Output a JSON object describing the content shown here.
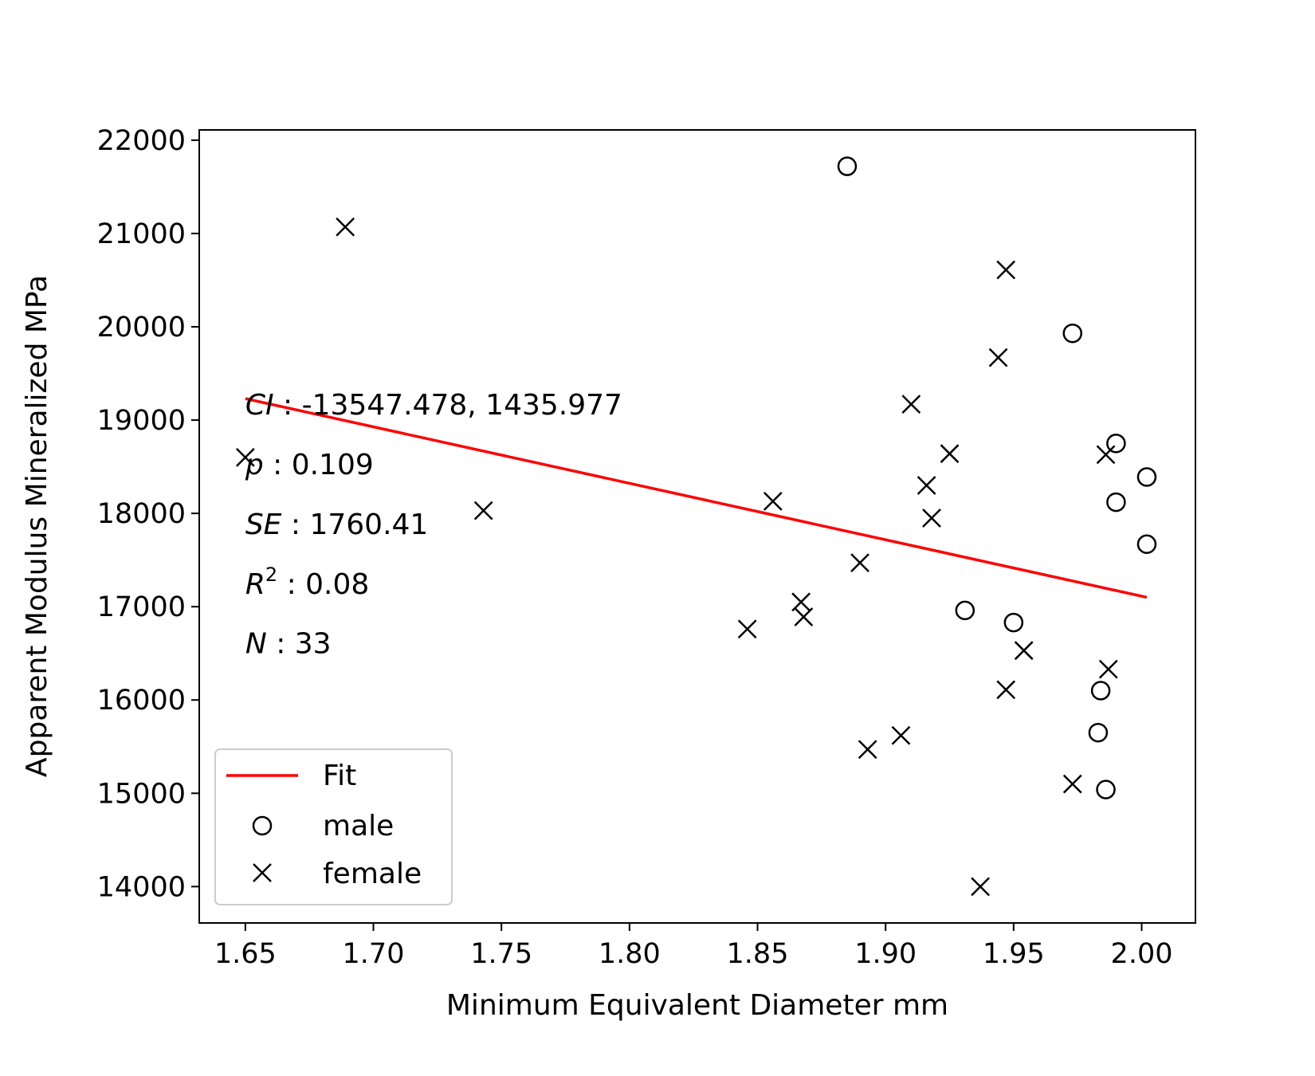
{
  "chart_data": {
    "type": "scatter",
    "title": "",
    "xlabel": "Minimum Equivalent Diameter mm",
    "ylabel": "Apparent Modulus Mineralized MPa",
    "xlim": [
      1.632,
      2.021
    ],
    "ylim": [
      13610,
      22110
    ],
    "xticks": [
      1.65,
      1.7,
      1.75,
      1.8,
      1.85,
      1.9,
      1.95,
      2.0
    ],
    "xtick_labels": [
      "1.65",
      "1.70",
      "1.75",
      "1.80",
      "1.85",
      "1.90",
      "1.95",
      "2.00"
    ],
    "yticks": [
      14000,
      15000,
      16000,
      17000,
      18000,
      19000,
      20000,
      21000,
      22000
    ],
    "ytick_labels": [
      "14000",
      "15000",
      "16000",
      "17000",
      "18000",
      "19000",
      "20000",
      "21000",
      "22000"
    ],
    "grid": false,
    "legend_position": "lower-left",
    "series": [
      {
        "name": "male",
        "marker": "circle",
        "color": "#000000",
        "points": [
          [
            1.885,
            21720
          ],
          [
            1.973,
            19930
          ],
          [
            1.99,
            18750
          ],
          [
            2.002,
            18390
          ],
          [
            1.99,
            18120
          ],
          [
            2.002,
            17670
          ],
          [
            1.931,
            16960
          ],
          [
            1.95,
            16830
          ],
          [
            1.984,
            16100
          ],
          [
            1.983,
            15650
          ],
          [
            1.986,
            15040
          ]
        ]
      },
      {
        "name": "female",
        "marker": "x",
        "color": "#000000",
        "points": [
          [
            1.65,
            18600
          ],
          [
            1.689,
            21070
          ],
          [
            1.743,
            18030
          ],
          [
            1.846,
            16760
          ],
          [
            1.856,
            18130
          ],
          [
            1.867,
            17050
          ],
          [
            1.868,
            16890
          ],
          [
            1.89,
            17470
          ],
          [
            1.893,
            15470
          ],
          [
            1.906,
            15620
          ],
          [
            1.91,
            19170
          ],
          [
            1.916,
            18300
          ],
          [
            1.918,
            17950
          ],
          [
            1.925,
            18640
          ],
          [
            1.937,
            14000
          ],
          [
            1.944,
            19670
          ],
          [
            1.947,
            20610
          ],
          [
            1.947,
            16110
          ],
          [
            1.954,
            16530
          ],
          [
            1.973,
            15100
          ],
          [
            1.986,
            18630
          ],
          [
            1.987,
            16330
          ]
        ]
      },
      {
        "name": "Fit",
        "type": "line",
        "color": "#ff0000",
        "points": [
          [
            1.65,
            19230
          ],
          [
            2.002,
            17100
          ]
        ]
      }
    ],
    "annotations": [
      {
        "symbol": "N",
        "superscript": "",
        "value": " : 33"
      },
      {
        "symbol": "R",
        "superscript": "2",
        "value": " : 0.08"
      },
      {
        "symbol": "SE",
        "superscript": "",
        "value": " : 1760.41"
      },
      {
        "symbol": "p",
        "superscript": "",
        "value": " : 0.109"
      },
      {
        "symbol": "CI",
        "superscript": "",
        "value": " : -13547.478,  1435.977"
      }
    ]
  }
}
